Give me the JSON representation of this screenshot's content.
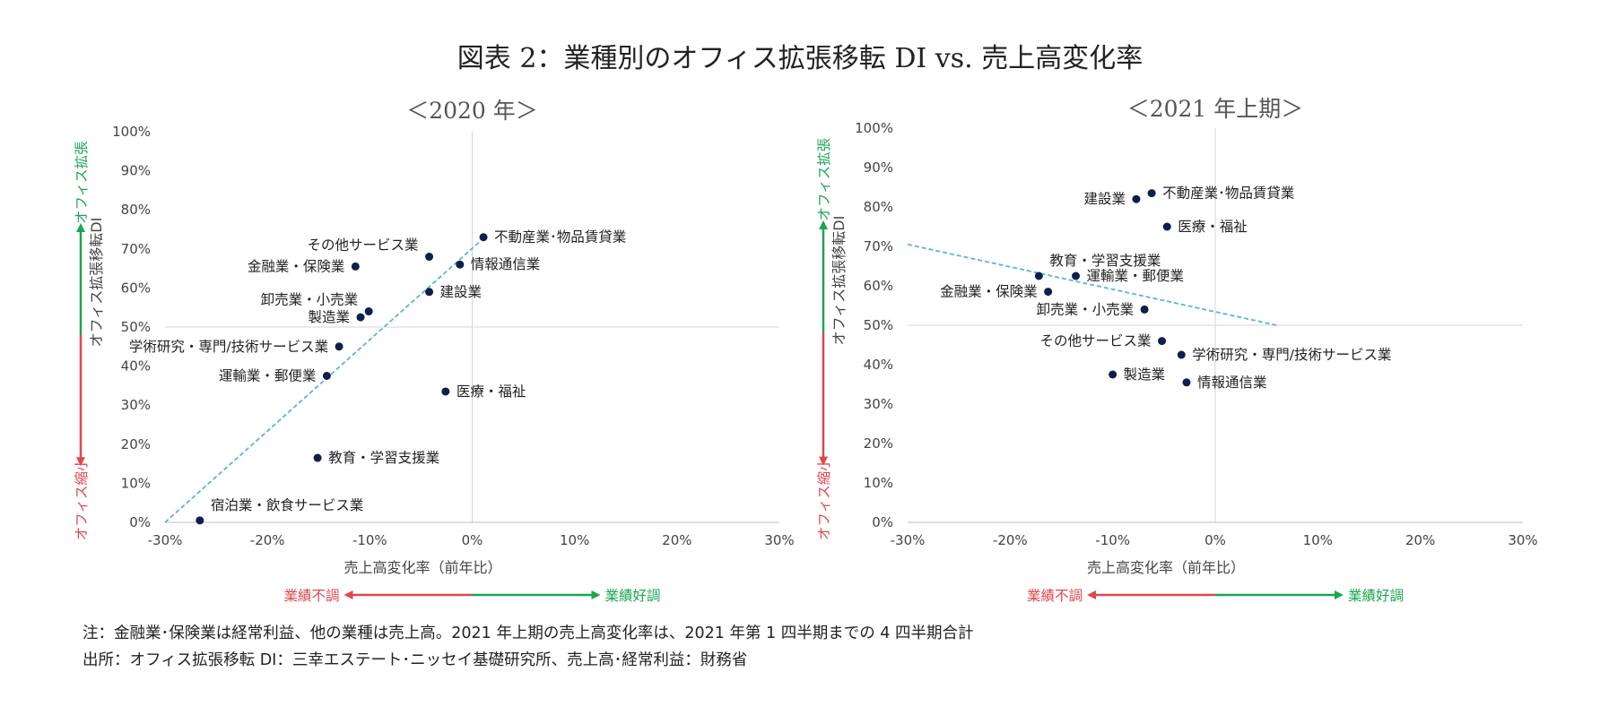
{
  "title": "図表 2：業種別のオフィス拡張移転 DI vs. 売上高変化率",
  "colors": {
    "point": "#0d1f4c",
    "trend": "#5ab4dc",
    "grid": "#d4d4d4",
    "expand": "#1aa64f",
    "shrink": "#e0474c"
  },
  "axis_text": {
    "ylabel": "オフィス拡張移転DI",
    "xlabel": "売上高変化率（前年比）",
    "y_up": "オフィス拡張",
    "y_down": "オフィス縮小",
    "x_left": "業績不調",
    "x_right": "業績好調"
  },
  "chart_data": [
    {
      "type": "scatter",
      "title": "＜2020 年＞",
      "xlim": [
        -30,
        30
      ],
      "ylim": [
        0,
        100
      ],
      "x_ticks": [
        -30,
        -20,
        -10,
        0,
        10,
        20,
        30
      ],
      "x_tick_labels": [
        "-30%",
        "-20%",
        "-10%",
        "0%",
        "10%",
        "20%",
        "30%"
      ],
      "y_ticks": [
        0,
        10,
        20,
        30,
        40,
        50,
        60,
        70,
        80,
        90,
        100
      ],
      "y_tick_labels": [
        "0%",
        "10%",
        "20%",
        "30%",
        "40%",
        "50%",
        "60%",
        "70%",
        "80%",
        "90%",
        "100%"
      ],
      "grid": "crosshair at x=0, y=50",
      "trendline": [
        [
          -30,
          0
        ],
        [
          0.8,
          72
        ]
      ],
      "points": [
        {
          "label": "不動産業･物品賃貸業",
          "x": 1.1,
          "y": 73,
          "label_side": "right"
        },
        {
          "label": "その他サービス業",
          "x": -4.2,
          "y": 68,
          "label_side": "left-above"
        },
        {
          "label": "情報通信業",
          "x": -1.2,
          "y": 66,
          "label_side": "right"
        },
        {
          "label": "金融業・保険業",
          "x": -11.4,
          "y": 65.5,
          "label_side": "left"
        },
        {
          "label": "卸売業・小売業",
          "x": -10.1,
          "y": 54,
          "label_side": "left-above"
        },
        {
          "label": "建設業",
          "x": -4.2,
          "y": 59,
          "label_side": "right"
        },
        {
          "label": "製造業",
          "x": -10.9,
          "y": 52.5,
          "label_side": "left"
        },
        {
          "label": "学術研究・専門/技術サービス業",
          "x": -13.0,
          "y": 45,
          "label_side": "left"
        },
        {
          "label": "運輸業・郵便業",
          "x": -14.2,
          "y": 37.5,
          "label_side": "left"
        },
        {
          "label": "医療・福祉",
          "x": -2.6,
          "y": 33.5,
          "label_side": "right"
        },
        {
          "label": "教育・学習支援業",
          "x": -15.1,
          "y": 16.5,
          "label_side": "right"
        },
        {
          "label": "宿泊業・飲食サービス業",
          "x": -26.6,
          "y": 0.5,
          "label_side": "right-above"
        }
      ]
    },
    {
      "type": "scatter",
      "title": "＜2021 年上期＞",
      "xlim": [
        -30,
        30
      ],
      "ylim": [
        0,
        100
      ],
      "x_ticks": [
        -30,
        -20,
        -10,
        0,
        10,
        20,
        30
      ],
      "x_tick_labels": [
        "-30%",
        "-20%",
        "-10%",
        "0%",
        "10%",
        "20%",
        "30%"
      ],
      "y_ticks": [
        0,
        10,
        20,
        30,
        40,
        50,
        60,
        70,
        80,
        90,
        100
      ],
      "y_tick_labels": [
        "0%",
        "10%",
        "20%",
        "30%",
        "40%",
        "50%",
        "60%",
        "70%",
        "80%",
        "90%",
        "100%"
      ],
      "grid": "crosshair at x=0, y=50",
      "trendline": [
        [
          -30,
          70.5
        ],
        [
          6,
          50
        ]
      ],
      "points": [
        {
          "label": "不動産業･物品賃貸業",
          "x": -6.2,
          "y": 83.5,
          "label_side": "right"
        },
        {
          "label": "建設業",
          "x": -7.7,
          "y": 82,
          "label_side": "left"
        },
        {
          "label": "医療・福祉",
          "x": -4.7,
          "y": 75,
          "label_side": "right"
        },
        {
          "label": "教育・学習支援業",
          "x": -17.2,
          "y": 62.5,
          "label_side": "right-above"
        },
        {
          "label": "運輸業・郵便業",
          "x": -13.6,
          "y": 62.5,
          "label_side": "right"
        },
        {
          "label": "金融業・保険業",
          "x": -16.3,
          "y": 58.5,
          "label_side": "left"
        },
        {
          "label": "卸売業・小売業",
          "x": -6.9,
          "y": 54,
          "label_side": "left"
        },
        {
          "label": "その他サービス業",
          "x": -5.2,
          "y": 46,
          "label_side": "left"
        },
        {
          "label": "学術研究・専門/技術サービス業",
          "x": -3.3,
          "y": 42.5,
          "label_side": "right"
        },
        {
          "label": "製造業",
          "x": -10.0,
          "y": 37.5,
          "label_side": "right"
        },
        {
          "label": "情報通信業",
          "x": -2.8,
          "y": 35.5,
          "label_side": "right"
        }
      ]
    }
  ],
  "notes": [
    "注：金融業･保険業は経常利益、他の業種は売上高。2021 年上期の売上高変化率は、2021 年第 1 四半期までの 4 四半期合計",
    "出所：オフィス拡張移転 DI：三幸エステート･ニッセイ基礎研究所、売上高･経常利益：財務省"
  ]
}
